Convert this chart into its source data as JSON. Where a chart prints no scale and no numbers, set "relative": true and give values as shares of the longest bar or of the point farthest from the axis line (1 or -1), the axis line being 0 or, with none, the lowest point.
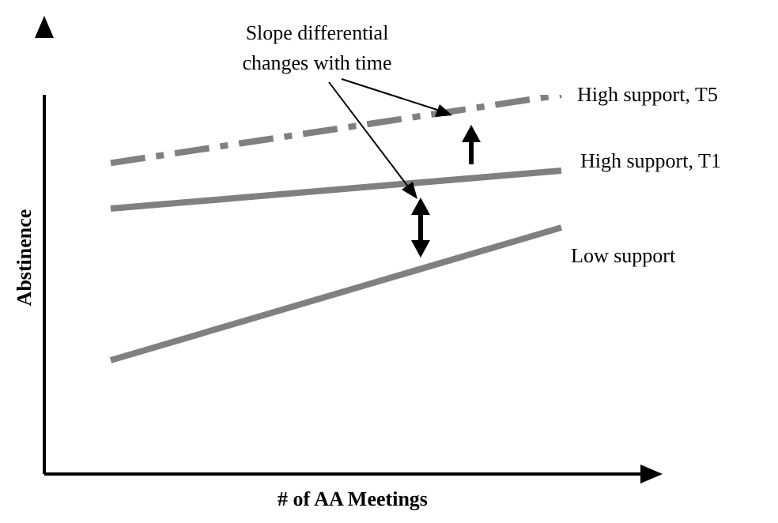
{
  "chart_data": {
    "type": "line",
    "xlabel": "# of AA Meetings",
    "ylabel": "Abstinence",
    "annotations": [
      "Slope differential changes with time"
    ],
    "categories": [
      null,
      null
    ],
    "relative": true,
    "marker": "none",
    "legend": false,
    "grid": false,
    "series": [
      {
        "name": "High support, T5",
        "color": "#808080",
        "line_style": "dashed",
        "values": [
          0.82,
          1
        ]
      },
      {
        "name": "High support, T1",
        "color": "#808080",
        "line_style": "solid",
        "values": [
          0.7,
          0.8
        ]
      },
      {
        "name": "Low support",
        "color": "#808080",
        "line_style": "solid",
        "values": [
          0.3,
          0.65
        ]
      }
    ]
  }
}
